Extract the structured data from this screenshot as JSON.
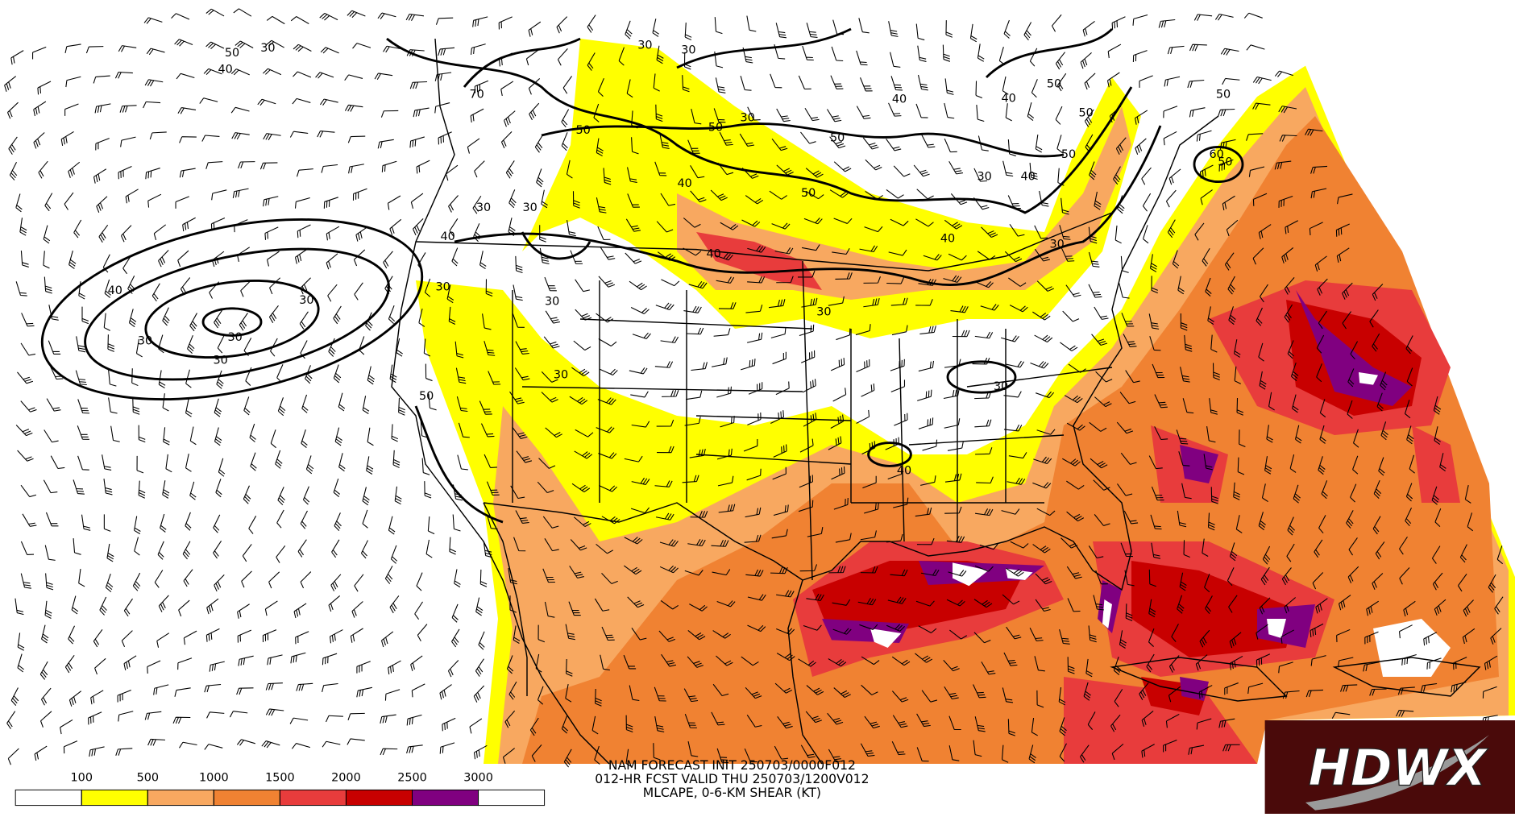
{
  "caption": {
    "line1": "NAM FORECAST INIT 250703/0000F012",
    "line2": "012-HR FCST VALID THU 250703/1200V012",
    "line3": "MLCAPE, 0-6-KM SHEAR (KT)"
  },
  "legend": {
    "ticks": [
      100,
      500,
      1000,
      1500,
      2000,
      2500,
      3000
    ],
    "colors": [
      "#ffffff",
      "#ffff00",
      "#f8a860",
      "#f08232",
      "#e83c3c",
      "#c80000",
      "#800080",
      "#ffffff"
    ]
  },
  "contour_labels": [
    30,
    50,
    40,
    30,
    70,
    50,
    30,
    50,
    30,
    40,
    50,
    40,
    50,
    30,
    40,
    30,
    50,
    40,
    40,
    30,
    50,
    50,
    40,
    30,
    40,
    30,
    30,
    50,
    60,
    50,
    40,
    30,
    30,
    30,
    30,
    30,
    30,
    50,
    40,
    30
  ],
  "logo": "HDWX"
}
